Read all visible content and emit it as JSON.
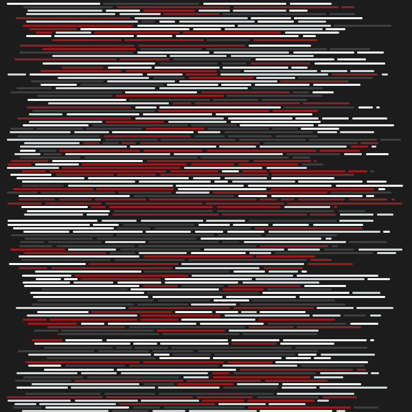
{
  "artwork": {
    "background_color": "#1c1c1c",
    "palette": {
      "white": "#f4f4f4",
      "light_gray": "#cfd5d5",
      "dark_gray": "#3e3e3e",
      "red": "#9a1b1e"
    }
  }
}
